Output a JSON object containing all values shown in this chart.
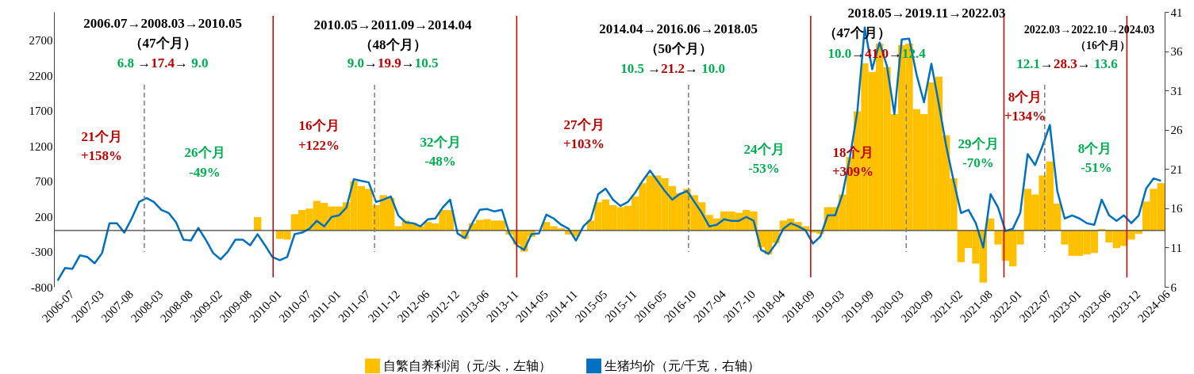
{
  "chart_data": {
    "type": "bar",
    "categories": [
      "2006-07",
      null,
      null,
      null,
      "2007-03",
      null,
      null,
      null,
      "2007-08",
      null,
      null,
      null,
      "2008-03",
      null,
      null,
      null,
      "2008-08",
      null,
      null,
      null,
      "2009-02",
      null,
      null,
      null,
      "2009-08",
      null,
      null,
      null,
      "2010-01",
      null,
      null,
      null,
      "2010-07",
      null,
      null,
      null,
      "2011-01",
      null,
      null,
      null,
      "2011-07",
      null,
      null,
      null,
      "2011-12",
      null,
      null,
      null,
      "2012-06",
      null,
      null,
      null,
      "2012-12",
      null,
      null,
      null,
      "2013-06",
      null,
      null,
      null,
      "2013-11",
      null,
      null,
      null,
      "2014-05",
      null,
      null,
      null,
      "2014-11",
      null,
      null,
      null,
      "2015-05",
      null,
      null,
      null,
      "2015-11",
      null,
      null,
      null,
      "2016-05",
      null,
      null,
      null,
      "2016-10",
      null,
      null,
      null,
      "2017-04",
      null,
      null,
      null,
      "2017-10",
      null,
      null,
      null,
      "2018-04",
      null,
      null,
      null,
      "2018-09",
      null,
      null,
      null,
      "2019-03",
      null,
      null,
      null,
      "2019-09",
      null,
      null,
      null,
      "2020-03",
      null,
      null,
      null,
      "2020-09",
      null,
      null,
      null,
      "2021-02",
      null,
      null,
      null,
      "2021-08",
      null,
      null,
      null,
      "2022-01",
      null,
      null,
      null,
      "2022-07",
      null,
      null,
      null,
      "2023-01",
      null,
      null,
      null,
      "2023-06",
      null,
      null,
      null,
      "2023-12",
      null,
      null,
      null,
      "2024-06",
      null
    ],
    "series": [
      {
        "name": "自繁自养利润（元/头，左轴）",
        "color": "#ffc000",
        "values": [
          null,
          null,
          null,
          null,
          null,
          null,
          null,
          null,
          null,
          null,
          null,
          null,
          null,
          null,
          null,
          null,
          null,
          null,
          null,
          null,
          null,
          null,
          null,
          null,
          null,
          null,
          null,
          190,
          null,
          null,
          -120,
          -130,
          230,
          290,
          310,
          420,
          390,
          340,
          340,
          400,
          700,
          630,
          590,
          360,
          500,
          460,
          60,
          140,
          110,
          60,
          120,
          100,
          290,
          290,
          0,
          -120,
          100,
          150,
          160,
          140,
          140,
          -60,
          -200,
          -300,
          -90,
          null,
          120,
          60,
          30,
          -60,
          -90,
          null,
          140,
          400,
          440,
          360,
          330,
          350,
          480,
          670,
          780,
          780,
          740,
          630,
          530,
          590,
          500,
          400,
          220,
          170,
          270,
          270,
          250,
          290,
          270,
          -240,
          -340,
          -180,
          140,
          170,
          120,
          60,
          -30,
          -50,
          330,
          330,
          510,
          1040,
          1690,
          2370,
          2250,
          2650,
          2320,
          1650,
          2630,
          2650,
          1720,
          1650,
          2100,
          2180,
          1350,
          740,
          -450,
          -250,
          -470,
          -740,
          170,
          -200,
          -430,
          -510,
          -200,
          590,
          510,
          780,
          980,
          380,
          -200,
          -360,
          -360,
          -340,
          -320,
          20,
          -170,
          -250,
          -220,
          -130,
          -50,
          410,
          590,
          670
        ]
      },
      {
        "name": "生猪均价（元/千克，右轴）",
        "type": "line",
        "color": "#0070c0",
        "axis": "y2",
        "values": [
          6.8,
          8.4,
          8.3,
          10.0,
          9.8,
          9.0,
          10.3,
          14.1,
          14.1,
          12.9,
          14.7,
          16.8,
          17.3,
          16.8,
          15.8,
          15.4,
          14.2,
          12.0,
          11.9,
          13.5,
          12.0,
          10.3,
          9.5,
          10.5,
          12.0,
          12.0,
          11.3,
          12.7,
          11.3,
          9.8,
          9.4,
          9.8,
          12.7,
          12.9,
          13.4,
          14.4,
          13.7,
          14.9,
          15.1,
          16.1,
          19.7,
          19.5,
          19.3,
          16.8,
          17.1,
          17.5,
          15.1,
          14.2,
          14.1,
          13.7,
          14.6,
          14.7,
          16.1,
          17.1,
          12.8,
          12.2,
          14.1,
          15.8,
          15.9,
          15.6,
          15.8,
          12.8,
          11.3,
          10.7,
          12.7,
          12.8,
          15.2,
          14.7,
          13.9,
          13.4,
          11.9,
          13.7,
          14.6,
          17.8,
          18.5,
          17.1,
          16.3,
          16.8,
          18.0,
          19.5,
          20.8,
          19.5,
          18.2,
          17.1,
          17.8,
          18.2,
          16.8,
          15.4,
          13.7,
          13.9,
          14.6,
          14.4,
          14.4,
          14.9,
          14.4,
          10.7,
          10.2,
          11.5,
          13.4,
          14.1,
          13.7,
          13.2,
          11.5,
          12.4,
          15.1,
          15.1,
          17.8,
          22.5,
          28.3,
          39,
          33.7,
          37.1,
          34.1,
          28,
          37.5,
          37.6,
          33.0,
          29.5,
          34.4,
          29.3,
          23.9,
          19.5,
          15.4,
          15.8,
          14.1,
          11.0,
          17.8,
          16.1,
          13.1,
          13.4,
          15.4,
          22.9,
          21.5,
          23.9,
          26.6,
          18.2,
          14.7,
          15.1,
          14.7,
          14.1,
          13.9,
          17.1,
          15.1,
          14.4,
          15.1,
          14.1,
          15.1,
          18.5,
          19.8,
          19.5
        ]
      }
    ],
    "ylim": [
      -800,
      3100
    ],
    "yticks": [
      -800,
      -300,
      200,
      700,
      1200,
      1700,
      2200,
      2700
    ],
    "y2lim": [
      6,
      41
    ],
    "y2ticks": [
      6,
      11,
      16,
      21,
      26,
      31,
      36,
      41
    ],
    "legend": "bottom",
    "annotations": [
      "2006.07→2008.03→2010.05",
      "（47个月）",
      "6.8 →17.4→ 9.0",
      "21个月",
      "+158%",
      "26个月",
      "-49%",
      "2010.05→2011.09→2014.04",
      "（48个月）",
      "9.0→19.9→10.5",
      "16个月",
      "+122%",
      "32个月",
      "-48%",
      "2014.04→2016.06→2018.05",
      "（50个月）",
      "10.5 →21.2→ 10.0",
      "27个月",
      "+103%",
      "24个月",
      "-53%",
      "2018.05→2019.11→2022.03",
      "（47个月）",
      "10.0→41.0→12.4",
      "18个月",
      "+309%",
      "29个月",
      "-70%",
      "2022.03→2022.10→2024.03",
      "（16个月）",
      "12.1→28.3→ 13.6",
      "8个月",
      "+134%",
      "8个月",
      "-51%"
    ]
  }
}
